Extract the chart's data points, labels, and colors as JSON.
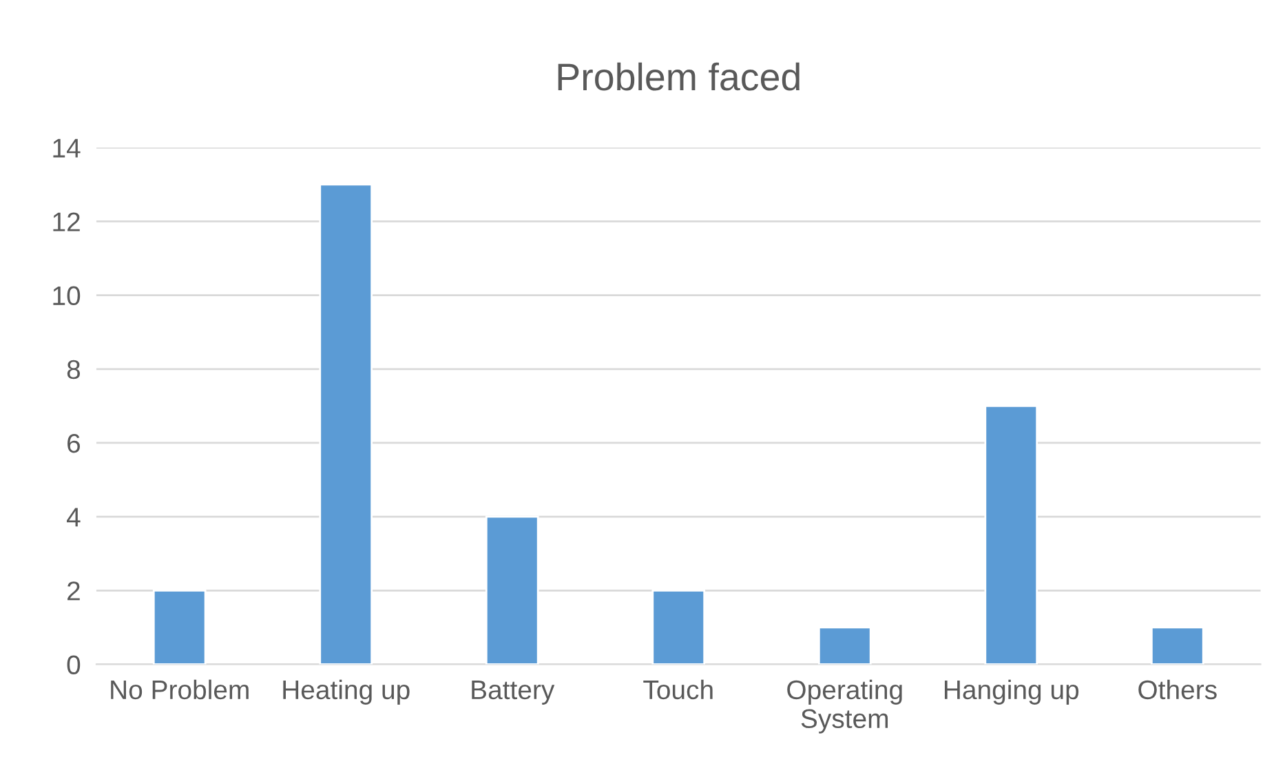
{
  "chart_data": {
    "type": "bar",
    "title": "Problem faced",
    "categories": [
      "No Problem",
      "Heating up",
      "Battery",
      "Touch",
      "Operating System",
      "Hanging up",
      "Others"
    ],
    "values": [
      2,
      13,
      4,
      2,
      1,
      7,
      1
    ],
    "color": "#5b9bd5",
    "ylim": [
      0,
      14
    ],
    "yticks": [
      0,
      2,
      4,
      6,
      8,
      10,
      12,
      14
    ],
    "grid": "y",
    "legend": false
  }
}
